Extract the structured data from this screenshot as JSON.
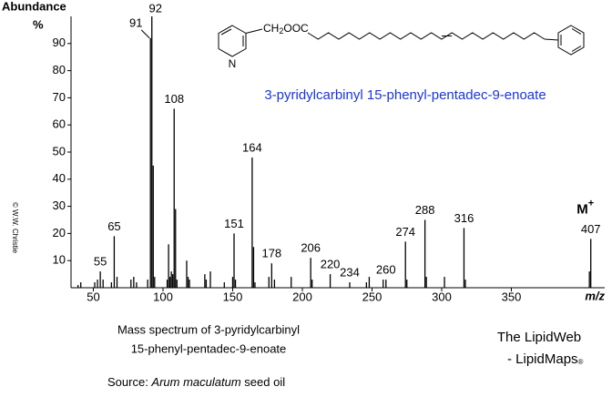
{
  "chart_data": {
    "type": "spectrum",
    "y_axis_label": "Abundance",
    "y_axis_unit": "%",
    "x_axis_label": "m/z",
    "x": [
      39,
      41,
      51,
      53,
      55,
      57,
      63,
      65,
      67,
      77,
      79,
      81,
      89,
      91,
      92,
      93,
      94,
      103,
      104,
      105,
      106,
      107,
      108,
      109,
      110,
      117,
      118,
      119,
      130,
      131,
      134,
      144,
      150,
      151,
      152,
      164,
      165,
      166,
      176,
      178,
      180,
      192,
      206,
      207,
      220,
      234,
      246,
      248,
      258,
      260,
      274,
      275,
      288,
      289,
      302,
      316,
      317,
      406,
      407
    ],
    "values": [
      1,
      2,
      2,
      3,
      6,
      3,
      2,
      19,
      4,
      3,
      4,
      2,
      3,
      92,
      100,
      45,
      4,
      3,
      16,
      4,
      6,
      5,
      66,
      29,
      3,
      10,
      4,
      3,
      5,
      3,
      6,
      2,
      4,
      20,
      3,
      48,
      15,
      2,
      4,
      9,
      3,
      4,
      11,
      3,
      5,
      2,
      2,
      4,
      3,
      3,
      17,
      3,
      25,
      4,
      4,
      22,
      3,
      6,
      18
    ],
    "peak_labels": [
      55,
      65,
      91,
      92,
      108,
      151,
      164,
      178,
      206,
      220,
      234,
      260,
      274,
      288,
      316,
      407
    ],
    "molecular_ion": {
      "label": "M",
      "charge": "+"
    },
    "color": "#000000",
    "xlim": [
      34,
      417
    ],
    "xticks": [
      50,
      100,
      150,
      200,
      250,
      300,
      350
    ],
    "ylim": [
      0,
      100
    ],
    "yticks": [
      10,
      20,
      30,
      40,
      50,
      60,
      70,
      80,
      90
    ]
  },
  "structure": {
    "linker": "CH2OOC",
    "nitrogen": "N",
    "name": "3-pyridylcarbinyl 15-phenyl-pentadec-9-enoate"
  },
  "caption": {
    "line1": "Mass spectrum of 3-pyridylcarbinyl",
    "line2": "15-phenyl-pentadec-9-enoate",
    "source_prefix": "Source: ",
    "source_species": "Arum maculatum",
    "source_suffix": " seed oil"
  },
  "credit": {
    "site": "The LipidWeb",
    "partner": "- LipidMaps",
    "mark": "®",
    "copyright": "© W.W. Christie"
  }
}
